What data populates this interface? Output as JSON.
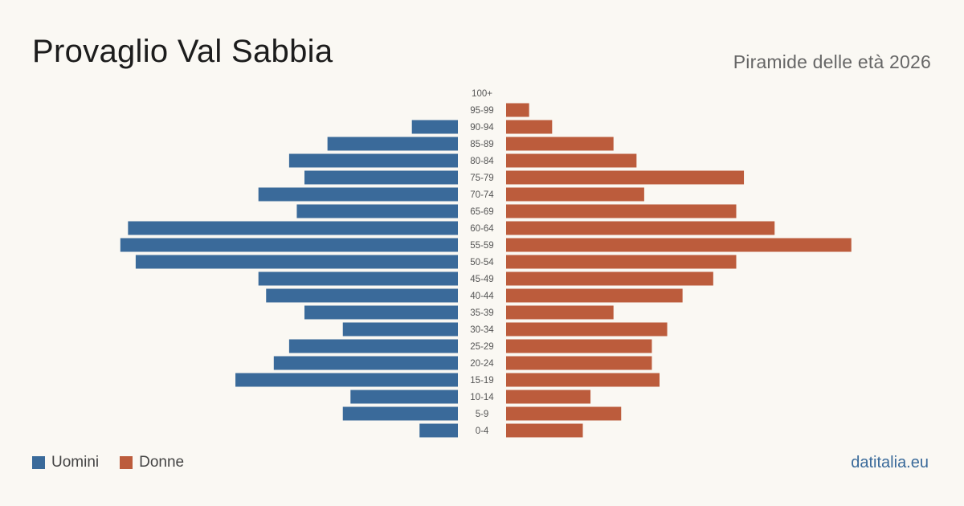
{
  "header": {
    "title": "Provaglio Val Sabbia",
    "subtitle": "Piramide delle età 2026"
  },
  "legend": {
    "men_label": "Uomini",
    "women_label": "Donne"
  },
  "brand": "datitalia.eu",
  "colors": {
    "men": "#3a6a9a",
    "women": "#bc5c3c",
    "background": "#faf8f3"
  },
  "chart_data": {
    "type": "bar",
    "orientation": "horizontal-pyramid",
    "categories": [
      "100+",
      "95-99",
      "90-94",
      "85-89",
      "80-84",
      "75-79",
      "70-74",
      "65-69",
      "60-64",
      "55-59",
      "50-54",
      "45-49",
      "40-44",
      "35-39",
      "30-34",
      "25-29",
      "20-24",
      "15-19",
      "10-14",
      "5-9",
      "0-4"
    ],
    "series": [
      {
        "name": "Uomini",
        "values": [
          0,
          0,
          6,
          17,
          22,
          20,
          26,
          21,
          43,
          44,
          42,
          26,
          25,
          20,
          15,
          22,
          24,
          29,
          14,
          15,
          5
        ]
      },
      {
        "name": "Donne",
        "values": [
          0,
          3,
          6,
          14,
          17,
          31,
          18,
          30,
          35,
          45,
          30,
          27,
          23,
          14,
          21,
          19,
          19,
          20,
          11,
          15,
          10
        ]
      }
    ]
  }
}
